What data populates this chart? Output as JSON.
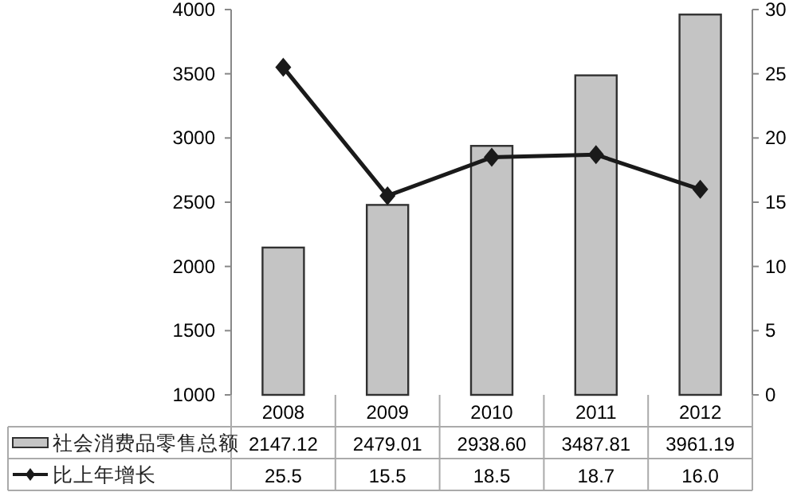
{
  "chart_data": {
    "type": "bar",
    "categories": [
      "2008",
      "2009",
      "2010",
      "2011",
      "2012"
    ],
    "series": [
      {
        "name": "社会消费品零售总额",
        "color": "#c4c4c4",
        "values": [
          2147.12,
          2479.01,
          2938.6,
          3487.81,
          3961.19
        ],
        "value_labels": [
          "2147.12",
          "2479.01",
          "2938.60",
          "3487.81",
          "3961.19"
        ]
      },
      {
        "name": "比上年增长",
        "type": "line",
        "axis": "y2",
        "color": "#1a1a1a",
        "marker": "diamond",
        "line_style": "solid",
        "values": [
          25.5,
          15.5,
          18.5,
          18.7,
          16.0
        ],
        "value_labels": [
          "25.5",
          "15.5",
          "18.5",
          "18.7",
          "16.0"
        ]
      }
    ],
    "ylim": [
      1000,
      4000
    ],
    "yticks": [
      1000,
      1500,
      2000,
      2500,
      3000,
      3500,
      4000
    ],
    "y2lim": [
      0,
      30
    ],
    "y2ticks": [
      0,
      5,
      10,
      15,
      20,
      25,
      30
    ],
    "legend": "bottom"
  }
}
